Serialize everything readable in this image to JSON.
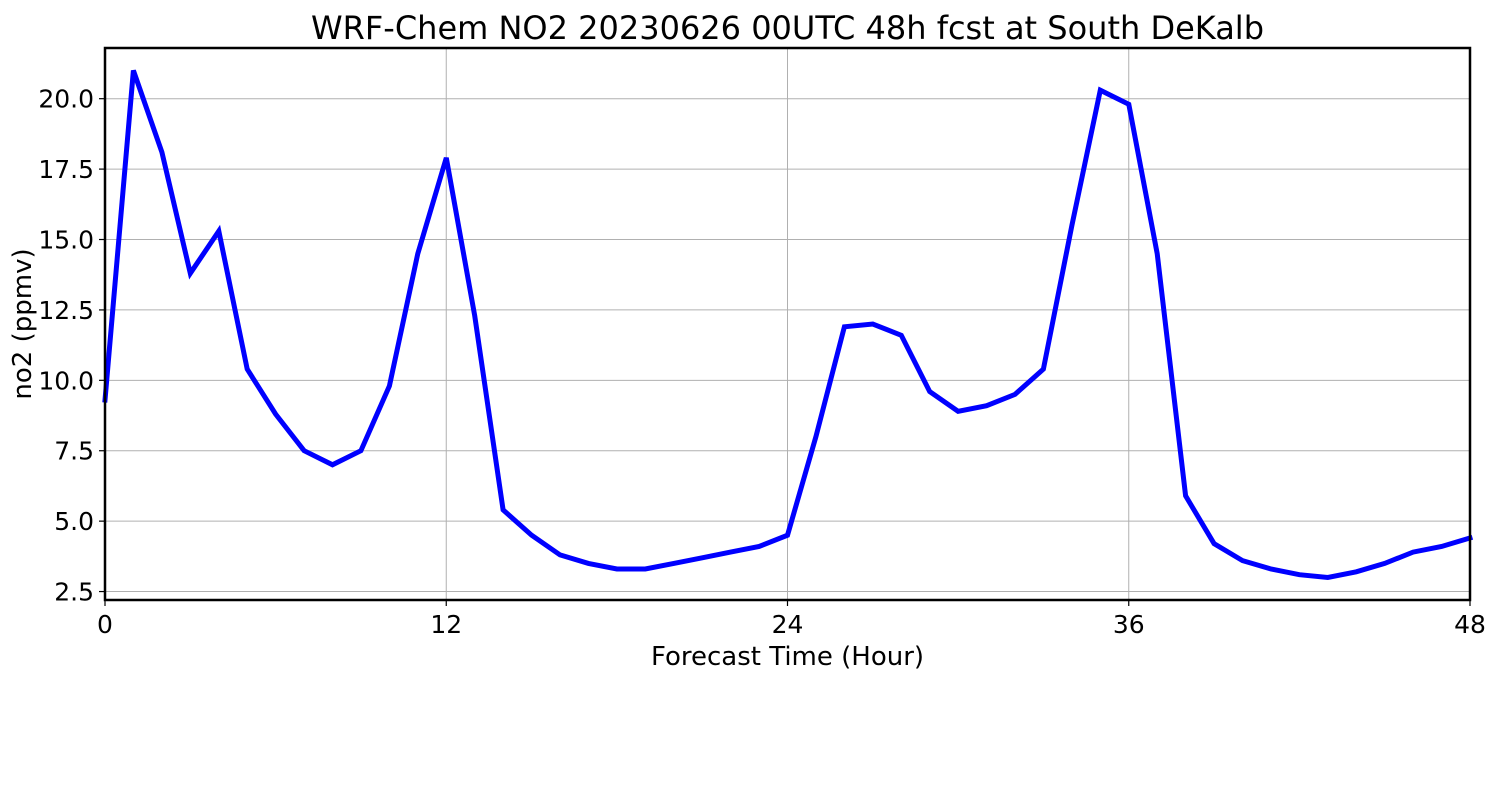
{
  "chart_data": {
    "type": "line",
    "title": "WRF-Chem NO2  20230626 00UTC 48h fcst at South DeKalb",
    "xlabel": "Forecast Time (Hour)",
    "ylabel": "no2  (ppmv)",
    "xlim": [
      0,
      48
    ],
    "ylim": [
      2.2,
      21.8
    ],
    "xticks": [
      0,
      12,
      24,
      36,
      48
    ],
    "xtick_labels": [
      "0",
      "12",
      "24",
      "36",
      "48"
    ],
    "yticks": [
      2.5,
      5.0,
      7.5,
      10.0,
      12.5,
      15.0,
      17.5,
      20.0
    ],
    "ytick_labels": [
      "2.5",
      "5.0",
      "7.5",
      "10.0",
      "12.5",
      "15.0",
      "17.5",
      "20.0"
    ],
    "grid": true,
    "line_color": "#0000ff",
    "x": [
      0,
      1,
      2,
      3,
      4,
      5,
      6,
      7,
      8,
      9,
      10,
      11,
      12,
      13,
      14,
      15,
      16,
      17,
      18,
      19,
      20,
      21,
      22,
      23,
      24,
      25,
      26,
      27,
      28,
      29,
      30,
      31,
      32,
      33,
      34,
      35,
      36,
      37,
      38,
      39,
      40,
      41,
      42,
      43,
      44,
      45,
      46,
      47,
      48
    ],
    "series": [
      {
        "values": [
          9.3,
          21.0,
          18.1,
          13.8,
          15.3,
          10.4,
          8.8,
          7.5,
          7.0,
          7.5,
          9.8,
          14.5,
          17.9,
          12.3,
          5.4,
          4.5,
          3.8,
          3.5,
          3.3,
          3.3,
          3.5,
          3.7,
          3.9,
          4.1,
          4.5,
          8.0,
          11.9,
          12.0,
          11.6,
          9.6,
          8.9,
          9.1,
          9.5,
          10.4,
          15.5,
          20.3,
          19.8,
          14.5,
          5.9,
          4.2,
          3.6,
          3.3,
          3.1,
          3.0,
          3.2,
          3.5,
          3.9,
          4.1,
          4.4
        ]
      }
    ]
  }
}
